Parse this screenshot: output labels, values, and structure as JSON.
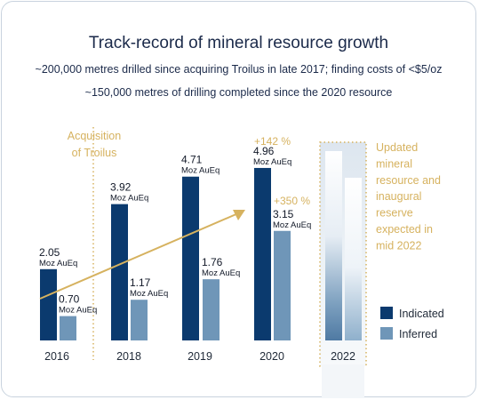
{
  "title": "Track-record of mineral resource growth",
  "subtitle_line1": "~200,000 metres drilled since acquiring Troilus in late 2017; finding costs of <$5/oz",
  "subtitle_line2": "~150,000 metres of drilling completed since the 2020 resource",
  "colors": {
    "indicated": "#0b3a6e",
    "inferred": "#6f96b8",
    "gold": "#d6b25f",
    "text": "#1b2a4a"
  },
  "chart_data": {
    "type": "bar",
    "categories": [
      "2016",
      "2018",
      "2019",
      "2020",
      "2022"
    ],
    "unit": "Moz AuEq",
    "series": [
      {
        "name": "Indicated",
        "values": [
          2.05,
          3.92,
          4.71,
          4.96,
          null
        ]
      },
      {
        "name": "Inferred",
        "values": [
          0.7,
          1.17,
          1.76,
          3.15,
          null
        ]
      }
    ],
    "value_labels": {
      "Indicated": [
        "2.05",
        "3.92",
        "4.71",
        "4.96",
        null
      ],
      "Inferred": [
        "0.70",
        "1.17",
        "1.76",
        "3.15",
        null
      ]
    },
    "ylim": [
      0,
      5.7
    ],
    "annotations": {
      "acquisition": [
        "Acquisition",
        "of Troilus"
      ],
      "indicated_growth": "+142 %",
      "inferred_growth": "+350 %",
      "expected": [
        "Updated",
        "mineral",
        "resource and",
        "inaugural",
        "reserve",
        "expected in",
        "mid 2022"
      ]
    },
    "legend": {
      "position": "right",
      "entries": [
        "Indicated",
        "Inferred"
      ]
    }
  }
}
